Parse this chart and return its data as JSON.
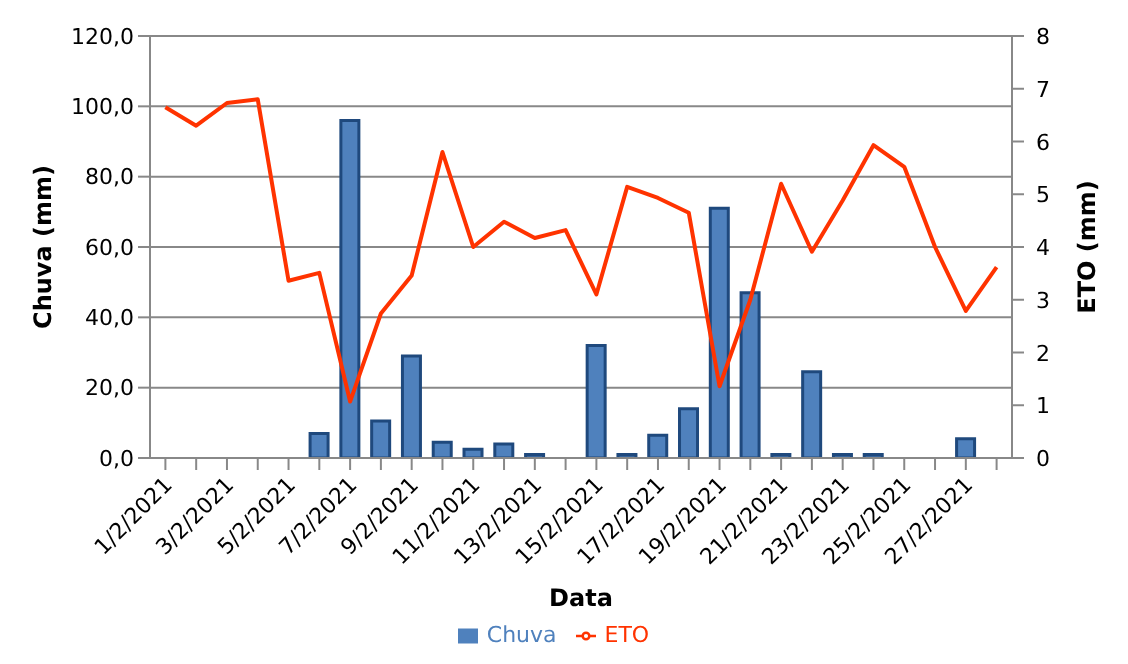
{
  "chart_data": {
    "type": "bar",
    "xlabel": "Data",
    "ylabel": "Chuva (mm)",
    "y2label": "ETO (mm)",
    "categories": [
      "1/2/2021",
      null,
      "3/2/2021",
      null,
      "5/2/2021",
      null,
      "7/2/2021",
      null,
      "9/2/2021",
      null,
      "11/2/2021",
      null,
      "13/2/2021",
      null,
      "15/2/2021",
      null,
      "17/2/2021",
      null,
      "19/2/2021",
      null,
      "21/2/2021",
      null,
      "23/2/2021",
      null,
      "25/2/2021",
      null,
      "27/2/2021",
      null
    ],
    "series": [
      {
        "name": "Chuva",
        "type": "bar",
        "color": "#4f81bd",
        "values": [
          0,
          0,
          0,
          0,
          0,
          7,
          96,
          10.5,
          29,
          4.5,
          2.5,
          4,
          1,
          0,
          32,
          1,
          6.5,
          14,
          71,
          47,
          1,
          24.5,
          1,
          1,
          0,
          0,
          5.5,
          0
        ]
      },
      {
        "name": "ETO",
        "type": "line",
        "axis": "y2",
        "color": "#ff3300",
        "values": [
          6.65,
          6.3,
          6.73,
          6.8,
          3.36,
          3.51,
          1.07,
          2.74,
          3.46,
          5.8,
          4.0,
          4.48,
          4.17,
          4.32,
          3.1,
          5.14,
          4.93,
          4.65,
          1.36,
          3.0,
          5.2,
          3.91,
          4.88,
          5.93,
          5.52,
          4.0,
          2.79,
          3.62
        ]
      }
    ],
    "ylim": [
      0,
      120
    ],
    "yticks": [
      {
        "value": 0,
        "label": "0,0"
      },
      {
        "value": 20,
        "label": "20,0"
      },
      {
        "value": 40,
        "label": "40,0"
      },
      {
        "value": 60,
        "label": "60,0"
      },
      {
        "value": 80,
        "label": "80,0"
      },
      {
        "value": 100,
        "label": "100,0"
      },
      {
        "value": 120,
        "label": "120,0"
      }
    ],
    "y2lim": [
      0,
      8
    ],
    "y2ticks": [
      0,
      1,
      2,
      3,
      4,
      5,
      6,
      7,
      8
    ],
    "grid": "y",
    "legend": "bottom",
    "marker": "none"
  }
}
